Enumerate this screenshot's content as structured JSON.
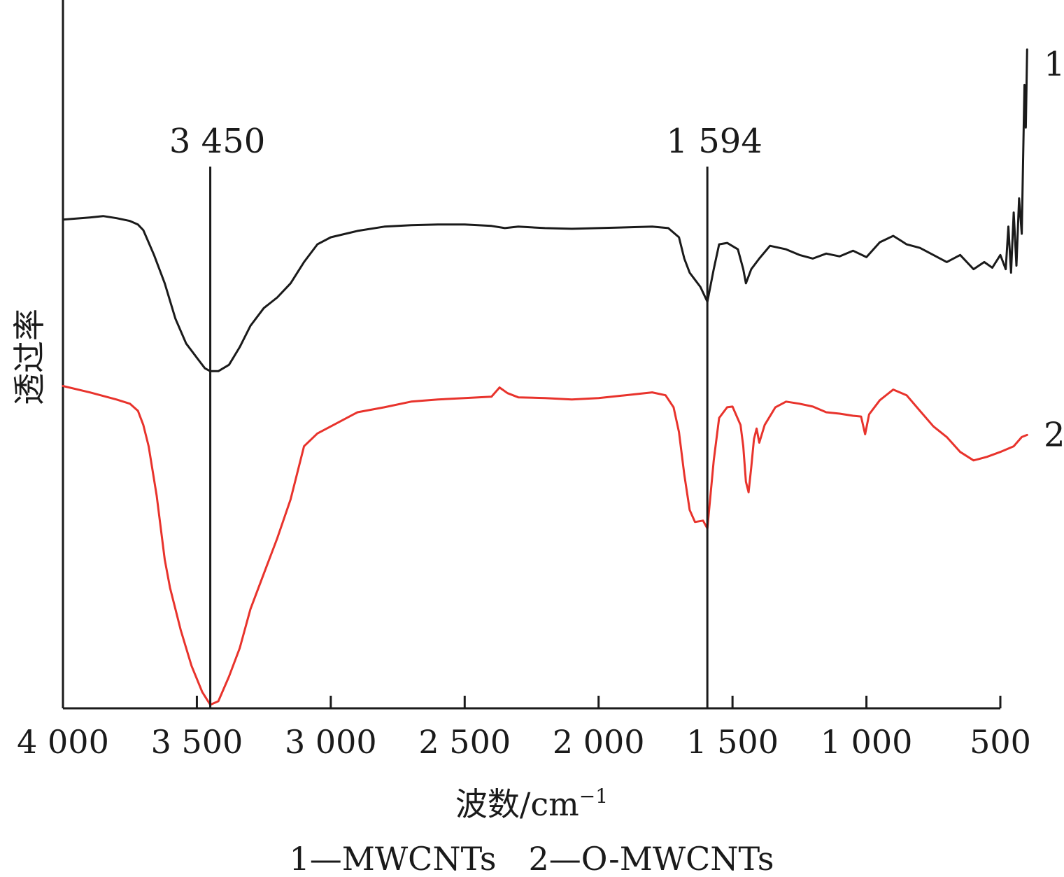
{
  "chart_data": {
    "type": "line",
    "title": "",
    "xlabel": "波数/cm",
    "xlabel_superscript": "−1",
    "ylabel": "透过率",
    "xlim": [
      4000,
      400
    ],
    "x_reversed": true,
    "y_ticks_shown": false,
    "grid": false,
    "x_ticks": [
      4000,
      3500,
      3000,
      2500,
      2000,
      1500,
      1000,
      500
    ],
    "x_tick_labels": [
      "4 000",
      "3 500",
      "3 000",
      "2 500",
      "2 000",
      "1 500",
      "1 000",
      "500"
    ],
    "y_scale": "relative transmittance (0 = bottom of plot, 100 = top)",
    "ylim": [
      0,
      100
    ],
    "peak_markers": [
      {
        "x": 3450,
        "label": "3 450"
      },
      {
        "x": 1594,
        "label": "1 594"
      }
    ],
    "series": [
      {
        "name": "1",
        "color": "#1a1a1a",
        "points": [
          [
            4000,
            69
          ],
          [
            3900,
            69.3
          ],
          [
            3850,
            69.5
          ],
          [
            3800,
            69.2
          ],
          [
            3750,
            68.8
          ],
          [
            3720,
            68.3
          ],
          [
            3700,
            67.5
          ],
          [
            3660,
            64
          ],
          [
            3620,
            60
          ],
          [
            3580,
            55
          ],
          [
            3540,
            51.5
          ],
          [
            3500,
            49.5
          ],
          [
            3470,
            48
          ],
          [
            3450,
            47.6
          ],
          [
            3420,
            47.6
          ],
          [
            3380,
            48.5
          ],
          [
            3340,
            51
          ],
          [
            3300,
            54
          ],
          [
            3250,
            56.5
          ],
          [
            3200,
            58
          ],
          [
            3150,
            60
          ],
          [
            3100,
            63
          ],
          [
            3050,
            65.5
          ],
          [
            3000,
            66.5
          ],
          [
            2900,
            67.4
          ],
          [
            2800,
            68
          ],
          [
            2700,
            68.2
          ],
          [
            2600,
            68.3
          ],
          [
            2500,
            68.3
          ],
          [
            2400,
            68.1
          ],
          [
            2350,
            67.8
          ],
          [
            2300,
            68
          ],
          [
            2200,
            67.8
          ],
          [
            2100,
            67.7
          ],
          [
            2000,
            67.8
          ],
          [
            1900,
            67.9
          ],
          [
            1800,
            68
          ],
          [
            1740,
            67.8
          ],
          [
            1700,
            66.5
          ],
          [
            1680,
            63.5
          ],
          [
            1660,
            61.5
          ],
          [
            1640,
            60.5
          ],
          [
            1620,
            59.5
          ],
          [
            1594,
            57.4
          ],
          [
            1570,
            62
          ],
          [
            1550,
            65.5
          ],
          [
            1520,
            65.7
          ],
          [
            1480,
            64.8
          ],
          [
            1460,
            62
          ],
          [
            1450,
            60
          ],
          [
            1430,
            62
          ],
          [
            1400,
            63.5
          ],
          [
            1360,
            65.3
          ],
          [
            1300,
            64.8
          ],
          [
            1250,
            64
          ],
          [
            1200,
            63.5
          ],
          [
            1150,
            64.2
          ],
          [
            1100,
            63.8
          ],
          [
            1050,
            64.6
          ],
          [
            1000,
            63.7
          ],
          [
            950,
            65.8
          ],
          [
            900,
            66.7
          ],
          [
            870,
            66
          ],
          [
            850,
            65.5
          ],
          [
            800,
            65
          ],
          [
            750,
            64
          ],
          [
            700,
            63
          ],
          [
            650,
            64
          ],
          [
            600,
            62
          ],
          [
            560,
            63
          ],
          [
            530,
            62.2
          ],
          [
            500,
            64
          ],
          [
            480,
            62
          ],
          [
            470,
            68
          ],
          [
            460,
            61.5
          ],
          [
            450,
            70
          ],
          [
            440,
            62.5
          ],
          [
            430,
            72
          ],
          [
            420,
            67
          ],
          [
            410,
            88
          ],
          [
            405,
            82
          ],
          [
            400,
            93
          ]
        ]
      },
      {
        "name": "2",
        "color": "#e8332c",
        "points": [
          [
            4000,
            45.5
          ],
          [
            3900,
            44.6
          ],
          [
            3800,
            43.6
          ],
          [
            3750,
            43
          ],
          [
            3720,
            42
          ],
          [
            3700,
            40
          ],
          [
            3680,
            37
          ],
          [
            3650,
            30
          ],
          [
            3620,
            21
          ],
          [
            3600,
            17
          ],
          [
            3560,
            11
          ],
          [
            3520,
            6
          ],
          [
            3480,
            2.3
          ],
          [
            3450,
            0.5
          ],
          [
            3420,
            1
          ],
          [
            3380,
            4.5
          ],
          [
            3340,
            8.5
          ],
          [
            3300,
            14
          ],
          [
            3250,
            19
          ],
          [
            3200,
            24
          ],
          [
            3150,
            29.5
          ],
          [
            3100,
            37
          ],
          [
            3050,
            38.8
          ],
          [
            3000,
            39.8
          ],
          [
            2900,
            41.8
          ],
          [
            2800,
            42.5
          ],
          [
            2700,
            43.3
          ],
          [
            2600,
            43.6
          ],
          [
            2500,
            43.8
          ],
          [
            2400,
            44
          ],
          [
            2370,
            45.3
          ],
          [
            2340,
            44.5
          ],
          [
            2300,
            43.9
          ],
          [
            2200,
            43.8
          ],
          [
            2100,
            43.6
          ],
          [
            2000,
            43.8
          ],
          [
            1900,
            44.2
          ],
          [
            1800,
            44.6
          ],
          [
            1750,
            44.2
          ],
          [
            1720,
            42.5
          ],
          [
            1700,
            39
          ],
          [
            1680,
            33
          ],
          [
            1660,
            28
          ],
          [
            1640,
            26.3
          ],
          [
            1610,
            26.5
          ],
          [
            1594,
            25.4
          ],
          [
            1570,
            35
          ],
          [
            1550,
            41
          ],
          [
            1520,
            42.5
          ],
          [
            1500,
            42.6
          ],
          [
            1470,
            40
          ],
          [
            1460,
            37
          ],
          [
            1450,
            32
          ],
          [
            1440,
            30.5
          ],
          [
            1430,
            34
          ],
          [
            1420,
            38
          ],
          [
            1410,
            39.5
          ],
          [
            1400,
            37.5
          ],
          [
            1380,
            40
          ],
          [
            1340,
            42.5
          ],
          [
            1300,
            43.3
          ],
          [
            1250,
            43
          ],
          [
            1200,
            42.6
          ],
          [
            1150,
            41.8
          ],
          [
            1100,
            41.6
          ],
          [
            1050,
            41.3
          ],
          [
            1020,
            41.2
          ],
          [
            1005,
            38.7
          ],
          [
            990,
            41.5
          ],
          [
            950,
            43.5
          ],
          [
            900,
            45
          ],
          [
            850,
            44.2
          ],
          [
            800,
            42
          ],
          [
            750,
            39.8
          ],
          [
            700,
            38.3
          ],
          [
            650,
            36.2
          ],
          [
            600,
            35
          ],
          [
            550,
            35.5
          ],
          [
            500,
            36.2
          ],
          [
            450,
            37
          ],
          [
            420,
            38.3
          ],
          [
            400,
            38.6
          ]
        ]
      }
    ],
    "legend_text": "1—MWCNTs　2—O-MWCNTs",
    "legend_placement": "bottom-center"
  }
}
